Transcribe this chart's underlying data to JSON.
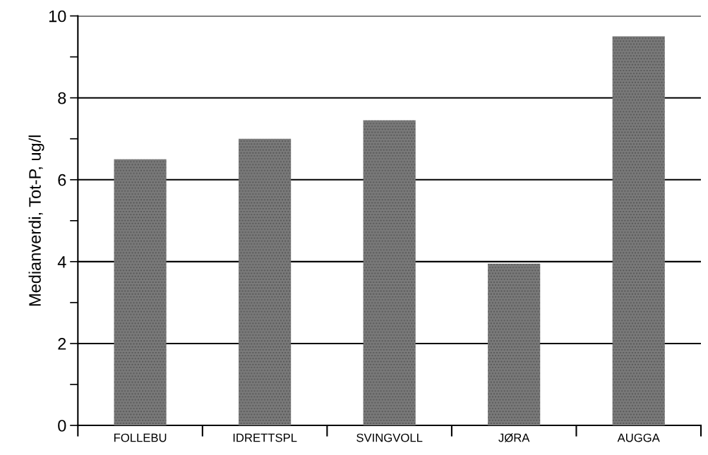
{
  "chart_data": {
    "type": "bar",
    "ylabel": "Medianverdi, Tot-P, ug/l",
    "categories": [
      "FOLLEBU",
      "IDRETTSPL",
      "SVINGVOLL",
      "JØRA",
      "AUGGA"
    ],
    "values": [
      6.5,
      7.0,
      7.45,
      3.95,
      9.5
    ],
    "color": "#7a7a7a",
    "ylim": [
      0,
      10
    ],
    "yticks": [
      0,
      {
        "value": 1,
        "label": null
      },
      2,
      {
        "value": 3,
        "label": null
      },
      4,
      {
        "value": 5,
        "label": null
      },
      6,
      {
        "value": 7,
        "label": null
      },
      8,
      {
        "value": 9,
        "label": null
      },
      10
    ],
    "grid": "y"
  }
}
